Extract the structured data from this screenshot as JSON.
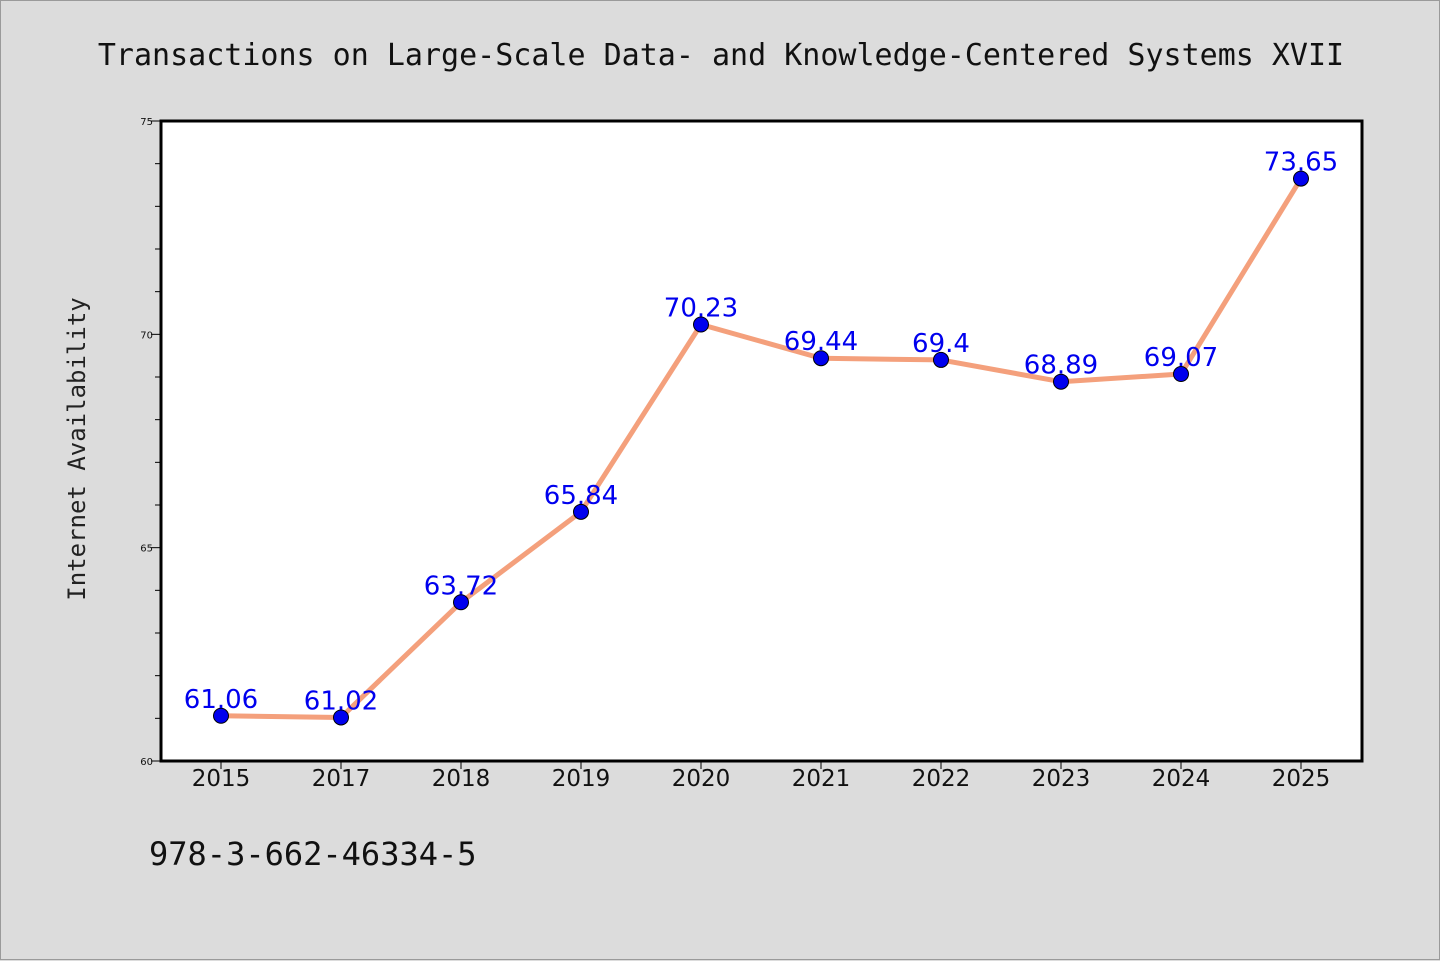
{
  "chart_data": {
    "type": "line",
    "title": "Transactions on Large-Scale Data- and Knowledge-Centered Systems XVII",
    "xlabel": "",
    "ylabel": "Internet Availability",
    "categories": [
      "2015",
      "2017",
      "2018",
      "2019",
      "2020",
      "2021",
      "2022",
      "2023",
      "2024",
      "2025"
    ],
    "series": [
      {
        "values": [
          61.06,
          61.02,
          63.72,
          65.84,
          70.23,
          69.44,
          69.4,
          68.89,
          69.07,
          73.65
        ],
        "value_labels": [
          "61.06",
          "61.02",
          "63.72",
          "65.84",
          "70.23",
          "69.44",
          "69.4",
          "68.89",
          "69.07",
          "73.65"
        ],
        "line_color": "#f4a07c",
        "marker_color": "#0000ee"
      }
    ],
    "ylim": [
      60,
      75
    ],
    "yticks": [
      "60",
      "65",
      "70",
      "75"
    ],
    "grid": false,
    "legend": "none"
  },
  "footer": {
    "isbn": "978-3-662-46334-5"
  }
}
